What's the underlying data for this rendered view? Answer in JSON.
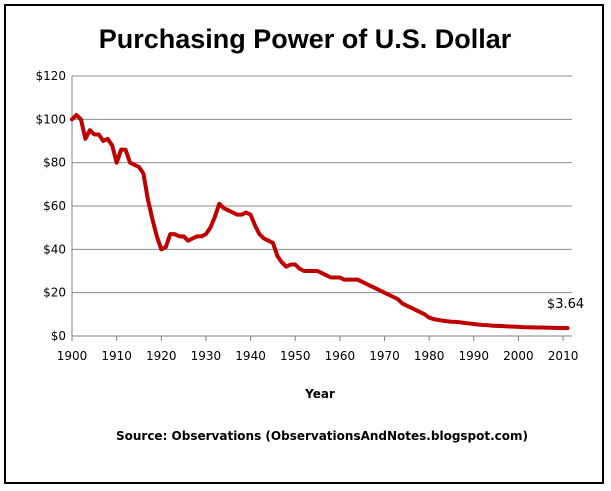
{
  "chart_data": {
    "type": "line",
    "title": "Purchasing Power of U.S. Dollar",
    "xlabel": "Year",
    "ylabel": "",
    "source": "Source: Observations  (ObservationsAndNotes.blogspot.com)",
    "xlim": [
      1900,
      2012
    ],
    "ylim": [
      0,
      120
    ],
    "x_ticks": [
      1900,
      1910,
      1920,
      1930,
      1940,
      1950,
      1960,
      1970,
      1980,
      1990,
      2000,
      2010
    ],
    "y_ticks": [
      0,
      20,
      40,
      60,
      80,
      100,
      120
    ],
    "y_tick_labels": [
      "$0",
      "$20",
      "$40",
      "$60",
      "$80",
      "$100",
      "$120"
    ],
    "grid": "horizontal",
    "legend": "none",
    "annotation": {
      "text": "$3.64",
      "x": 2011,
      "y": 3.64
    },
    "series": [
      {
        "color": "#c00000",
        "x": [
          1900,
          1901,
          1902,
          1903,
          1904,
          1905,
          1906,
          1907,
          1908,
          1909,
          1910,
          1911,
          1912,
          1913,
          1914,
          1915,
          1916,
          1917,
          1918,
          1919,
          1920,
          1921,
          1922,
          1923,
          1924,
          1925,
          1926,
          1927,
          1928,
          1929,
          1930,
          1931,
          1932,
          1933,
          1934,
          1935,
          1936,
          1937,
          1938,
          1939,
          1940,
          1941,
          1942,
          1943,
          1944,
          1945,
          1946,
          1947,
          1948,
          1949,
          1950,
          1951,
          1952,
          1953,
          1954,
          1955,
          1956,
          1957,
          1958,
          1959,
          1960,
          1961,
          1962,
          1963,
          1964,
          1965,
          1966,
          1967,
          1968,
          1969,
          1970,
          1971,
          1972,
          1973,
          1974,
          1975,
          1976,
          1977,
          1978,
          1979,
          1980,
          1981,
          1982,
          1983,
          1984,
          1985,
          1986,
          1987,
          1988,
          1989,
          1990,
          1991,
          1992,
          1993,
          1994,
          1995,
          1996,
          1997,
          1998,
          1999,
          2000,
          2001,
          2002,
          2003,
          2004,
          2005,
          2006,
          2007,
          2008,
          2009,
          2010,
          2011
        ],
        "y": [
          100,
          102,
          100,
          91,
          95,
          93,
          93,
          90,
          91,
          88,
          80,
          86,
          86,
          80,
          79,
          78,
          75,
          63,
          54,
          46,
          40,
          41,
          47,
          47,
          46,
          46,
          44,
          45,
          46,
          46,
          47,
          50,
          55,
          61,
          59,
          58,
          57,
          56,
          56,
          57,
          56,
          51,
          47,
          45,
          44,
          43,
          37,
          34,
          32,
          33,
          33,
          31,
          30,
          30,
          30,
          30,
          29,
          28,
          27,
          27,
          27,
          26,
          26,
          26,
          26,
          25,
          24,
          23,
          22,
          21,
          20,
          19,
          18,
          17,
          15,
          14,
          13,
          12,
          11,
          10,
          8.5,
          7.8,
          7.4,
          7.1,
          6.8,
          6.6,
          6.5,
          6.3,
          6.0,
          5.8,
          5.5,
          5.3,
          5.1,
          5.0,
          4.8,
          4.7,
          4.6,
          4.5,
          4.4,
          4.3,
          4.2,
          4.1,
          4.05,
          4.0,
          3.95,
          3.9,
          3.85,
          3.8,
          3.75,
          3.72,
          3.68,
          3.64
        ]
      }
    ]
  }
}
